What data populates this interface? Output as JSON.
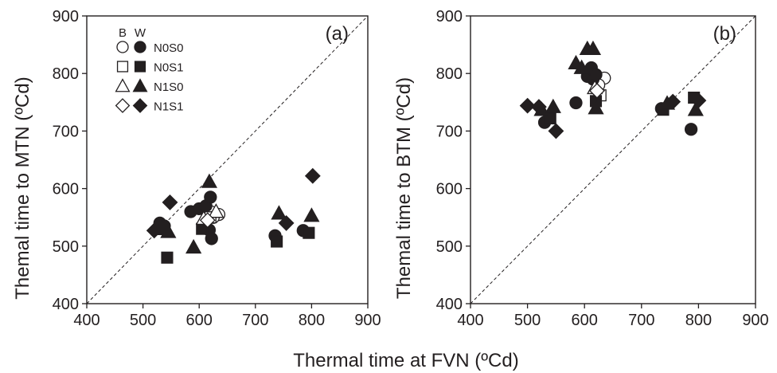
{
  "figure": {
    "xlabel": "Thermal time at FVN (ºCd)",
    "legend_header_b": "B",
    "legend_header_w": "W",
    "legend": [
      {
        "label": "N0S0",
        "shape": "circle"
      },
      {
        "label": "N0S1",
        "shape": "square"
      },
      {
        "label": "N1S0",
        "shape": "triangle"
      },
      {
        "label": "N1S1",
        "shape": "diamond"
      }
    ]
  },
  "chart_data": [
    {
      "type": "scatter",
      "panel_label": "(a)",
      "xlabel": "Thermal time at FVN (ºCd)",
      "ylabel": "Themal time to MTN (ºCd)",
      "xlim": [
        400,
        900
      ],
      "ylim": [
        400,
        900
      ],
      "xticks": [
        400,
        500,
        600,
        700,
        800,
        900
      ],
      "yticks": [
        400,
        500,
        600,
        700,
        800,
        900
      ],
      "reference_line": "1:1 dashed",
      "legend_position": "top-left",
      "series": [
        {
          "name": "N0S0",
          "group": "B",
          "shape": "circle",
          "fill": "open",
          "points": [
            [
              620,
              560
            ],
            [
              635,
              555
            ],
            [
              625,
              550
            ]
          ]
        },
        {
          "name": "N0S0",
          "group": "W",
          "shape": "circle",
          "fill": "filled",
          "points": [
            [
              530,
              540
            ],
            [
              538,
              535
            ],
            [
              585,
              560
            ],
            [
              600,
              565
            ],
            [
              612,
              570
            ],
            [
              620,
              585
            ],
            [
              618,
              528
            ],
            [
              622,
              513
            ],
            [
              735,
              518
            ],
            [
              785,
              527
            ]
          ]
        },
        {
          "name": "N0S1",
          "group": "B",
          "shape": "square",
          "fill": "open",
          "points": [
            [
              620,
              550
            ]
          ]
        },
        {
          "name": "N0S1",
          "group": "W",
          "shape": "square",
          "fill": "filled",
          "points": [
            [
              543,
              480
            ],
            [
              605,
              530
            ],
            [
              738,
              508
            ],
            [
              795,
              523
            ]
          ]
        },
        {
          "name": "N1S0",
          "group": "B",
          "shape": "triangle",
          "fill": "open",
          "points": [
            [
              608,
              548
            ],
            [
              630,
              560
            ]
          ]
        },
        {
          "name": "N1S0",
          "group": "W",
          "shape": "triangle",
          "fill": "filled",
          "points": [
            [
              535,
              530
            ],
            [
              545,
              525
            ],
            [
              590,
              498
            ],
            [
              618,
              612
            ],
            [
              742,
              557
            ],
            [
              800,
              553
            ]
          ]
        },
        {
          "name": "N1S1",
          "group": "B",
          "shape": "diamond",
          "fill": "open",
          "points": [
            [
              615,
              545
            ]
          ]
        },
        {
          "name": "N1S1",
          "group": "W",
          "shape": "diamond",
          "fill": "filled",
          "points": [
            [
              520,
              527
            ],
            [
              548,
              576
            ],
            [
              755,
              540
            ],
            [
              802,
              622
            ]
          ]
        }
      ]
    },
    {
      "type": "scatter",
      "panel_label": "(b)",
      "xlabel": "Thermal time at FVN (ºCd)",
      "ylabel": "Themal time to BTM (ºCd)",
      "xlim": [
        400,
        900
      ],
      "ylim": [
        400,
        900
      ],
      "xticks": [
        400,
        500,
        600,
        700,
        800,
        900
      ],
      "yticks": [
        400,
        500,
        600,
        700,
        800,
        900
      ],
      "reference_line": "1:1 dashed",
      "series": [
        {
          "name": "N0S0",
          "group": "B",
          "shape": "circle",
          "fill": "open",
          "points": [
            [
              635,
              792
            ],
            [
              625,
              780
            ]
          ]
        },
        {
          "name": "N0S0",
          "group": "W",
          "shape": "circle",
          "fill": "filled",
          "points": [
            [
              530,
              715
            ],
            [
              585,
              749
            ],
            [
              605,
              795
            ],
            [
              612,
              810
            ],
            [
              615,
              790
            ],
            [
              620,
              798
            ],
            [
              735,
              739
            ],
            [
              787,
              703
            ]
          ]
        },
        {
          "name": "N0S1",
          "group": "B",
          "shape": "square",
          "fill": "open",
          "points": [
            [
              628,
              762
            ]
          ]
        },
        {
          "name": "N0S1",
          "group": "W",
          "shape": "square",
          "fill": "filled",
          "points": [
            [
              540,
              722
            ],
            [
              620,
              752
            ],
            [
              738,
              737
            ],
            [
              792,
              758
            ]
          ]
        },
        {
          "name": "N1S0",
          "group": "B",
          "shape": "triangle",
          "fill": "open",
          "points": [
            [
              618,
              775
            ]
          ]
        },
        {
          "name": "N1S0",
          "group": "W",
          "shape": "triangle",
          "fill": "filled",
          "points": [
            [
              525,
              737
            ],
            [
              545,
              742
            ],
            [
              585,
              818
            ],
            [
              595,
              810
            ],
            [
              605,
              843
            ],
            [
              615,
              843
            ],
            [
              620,
              740
            ],
            [
              745,
              748
            ],
            [
              795,
              737
            ]
          ]
        },
        {
          "name": "N1S1",
          "group": "B",
          "shape": "diamond",
          "fill": "open",
          "points": [
            [
              622,
              770
            ]
          ]
        },
        {
          "name": "N1S1",
          "group": "W",
          "shape": "diamond",
          "fill": "filled",
          "points": [
            [
              500,
              744
            ],
            [
              520,
              742
            ],
            [
              550,
              700
            ],
            [
              755,
              751
            ],
            [
              800,
              753
            ]
          ]
        }
      ]
    }
  ]
}
